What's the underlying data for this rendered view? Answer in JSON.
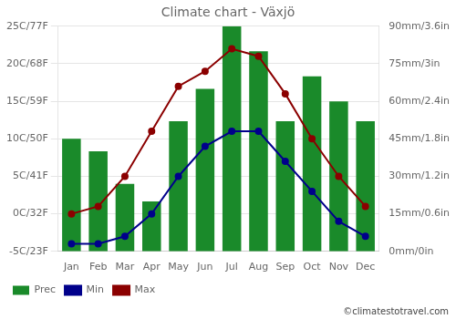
{
  "chart_data": {
    "type": "bar",
    "title": "Climate chart - Växjö",
    "categories": [
      "Jan",
      "Feb",
      "Mar",
      "Apr",
      "May",
      "Jun",
      "Jul",
      "Aug",
      "Sep",
      "Oct",
      "Nov",
      "Dec"
    ],
    "series": [
      {
        "name": "Prec",
        "type": "bar",
        "axis": "y2",
        "color": "#1a8a2a",
        "values": [
          45,
          40,
          27,
          20,
          52,
          65,
          90,
          80,
          52,
          70,
          60,
          52
        ]
      },
      {
        "name": "Min",
        "type": "line",
        "color": "#00008b",
        "marker": "circle",
        "line_style": "solid",
        "values": [
          -4,
          -4,
          -3,
          0,
          5,
          9,
          11,
          11,
          7,
          3,
          -1,
          -3
        ]
      },
      {
        "name": "Max",
        "type": "line",
        "color": "#8b0000",
        "marker": "circle",
        "line_style": "solid",
        "values": [
          0,
          1,
          5,
          11,
          17,
          19,
          22,
          21,
          16,
          10,
          5,
          1
        ]
      }
    ],
    "ylim": [
      -5,
      25
    ],
    "yticks": [
      {
        "value": -5,
        "label": "-5C/23F"
      },
      {
        "value": 0,
        "label": "0C/32F"
      },
      {
        "value": 5,
        "label": "5C/41F"
      },
      {
        "value": 10,
        "label": "10C/50F"
      },
      {
        "value": 15,
        "label": "15C/59F"
      },
      {
        "value": 20,
        "label": "20C/68F"
      },
      {
        "value": 25,
        "label": "25C/77F"
      }
    ],
    "y2lim": [
      0,
      90
    ],
    "y2ticks": [
      {
        "value": 0,
        "label": "0mm/0in"
      },
      {
        "value": 15,
        "label": "15mm/0.6in"
      },
      {
        "value": 30,
        "label": "30mm/1.2in"
      },
      {
        "value": 45,
        "label": "45mm/1.8in"
      },
      {
        "value": 60,
        "label": "60mm/2.4in"
      },
      {
        "value": 75,
        "label": "75mm/3in"
      },
      {
        "value": 90,
        "label": "90mm/3.6in"
      }
    ],
    "grid": true,
    "legend": "bottom",
    "annotation": "©climatestotravel.com"
  }
}
